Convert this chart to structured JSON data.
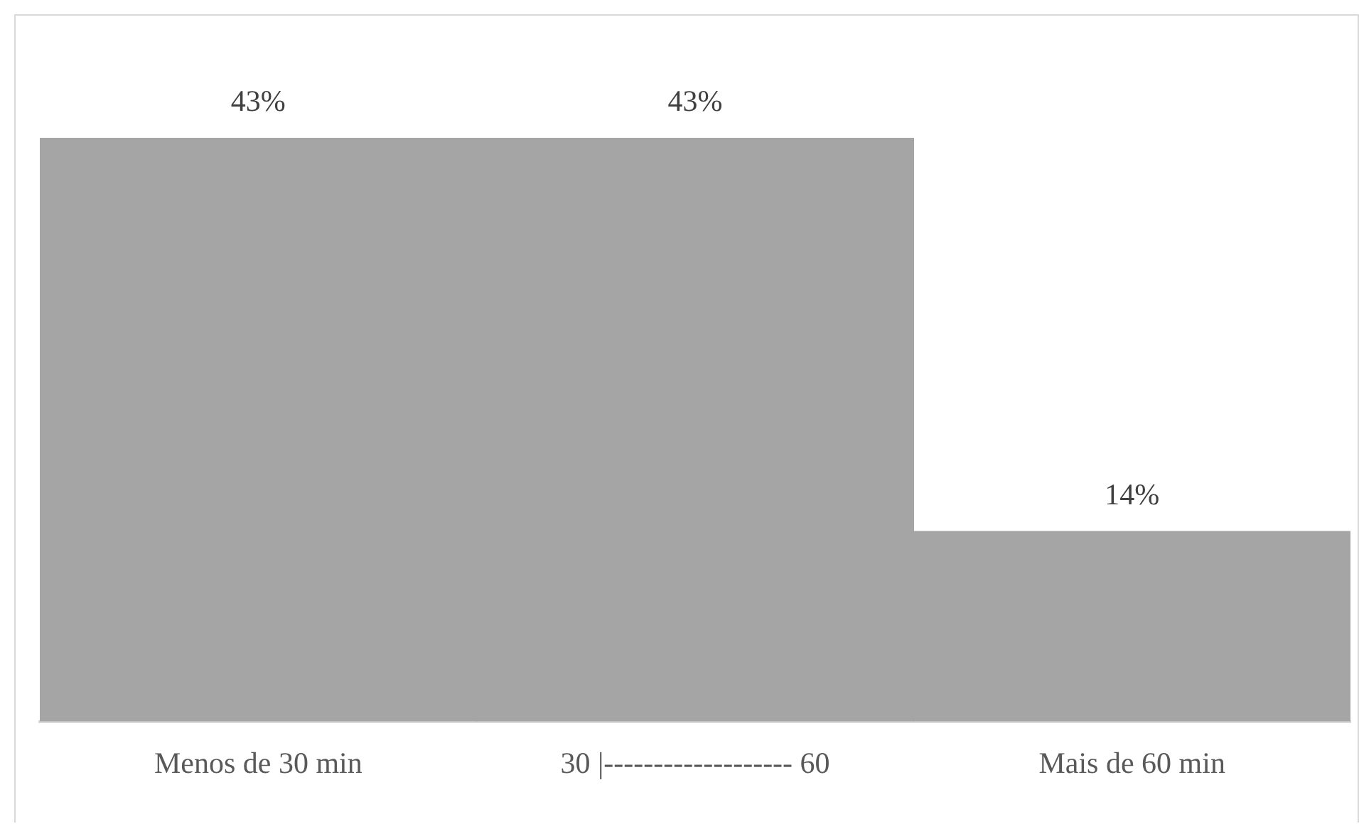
{
  "chart_data": {
    "type": "bar",
    "categories": [
      "Menos de 30 min",
      "30 |------------------- 60",
      "Mais de 60 min"
    ],
    "values": [
      43,
      43,
      14
    ],
    "color": "#a5a5a5",
    "data_labels": true,
    "value_labels": [
      "43%",
      "43%",
      "14%"
    ],
    "grid": false,
    "legend": false
  }
}
